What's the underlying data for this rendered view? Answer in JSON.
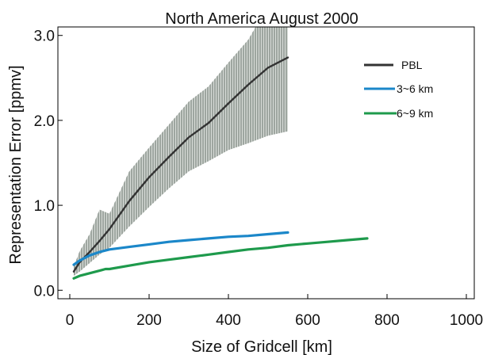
{
  "chart_data": {
    "type": "line",
    "title": "North America August 2000",
    "xlabel": "Size of Gridcell [km]",
    "ylabel": "Representation Error [ppmv]",
    "xlim": [
      -30,
      1020
    ],
    "ylim": [
      -0.1,
      3.1
    ],
    "x_ticks": [
      0,
      200,
      400,
      600,
      800,
      1000
    ],
    "x_tick_labels": [
      "0",
      "200",
      "400",
      "600",
      "800",
      "1000"
    ],
    "y_ticks": [
      0.0,
      1.0,
      2.0,
      3.0
    ],
    "y_tick_labels": [
      "0.0",
      "1.0",
      "2.0",
      "3.0"
    ],
    "grid": false,
    "legend_position": "top-right",
    "series": [
      {
        "name": "PBL",
        "color": "#333333",
        "x": [
          10,
          25,
          50,
          75,
          100,
          150,
          200,
          250,
          300,
          350,
          400,
          450,
          500,
          550
        ],
        "y": [
          0.22,
          0.33,
          0.45,
          0.58,
          0.72,
          1.05,
          1.33,
          1.57,
          1.8,
          1.97,
          2.2,
          2.42,
          2.62,
          2.74
        ],
        "band_lower": [
          0.17,
          0.22,
          0.32,
          0.42,
          0.5,
          0.75,
          0.98,
          1.2,
          1.4,
          1.52,
          1.65,
          1.73,
          1.82,
          1.87
        ],
        "band_upper": [
          0.28,
          0.46,
          0.66,
          0.95,
          0.9,
          1.4,
          1.68,
          1.95,
          2.22,
          2.4,
          2.68,
          2.95,
          3.35,
          3.55
        ]
      },
      {
        "name": "3~6 km",
        "color": "#1b87c9",
        "x": [
          10,
          25,
          50,
          75,
          100,
          150,
          200,
          250,
          300,
          350,
          400,
          450,
          500,
          550
        ],
        "y": [
          0.3,
          0.35,
          0.41,
          0.45,
          0.48,
          0.51,
          0.54,
          0.57,
          0.59,
          0.61,
          0.63,
          0.64,
          0.66,
          0.68
        ]
      },
      {
        "name": "6~9 km",
        "color": "#1e9a4c",
        "x": [
          10,
          25,
          50,
          75,
          90,
          100,
          150,
          200,
          250,
          300,
          350,
          400,
          450,
          500,
          550,
          600,
          650,
          700,
          750
        ],
        "y": [
          0.14,
          0.17,
          0.2,
          0.23,
          0.25,
          0.25,
          0.29,
          0.33,
          0.36,
          0.39,
          0.42,
          0.45,
          0.48,
          0.5,
          0.53,
          0.55,
          0.57,
          0.59,
          0.61
        ]
      }
    ]
  }
}
